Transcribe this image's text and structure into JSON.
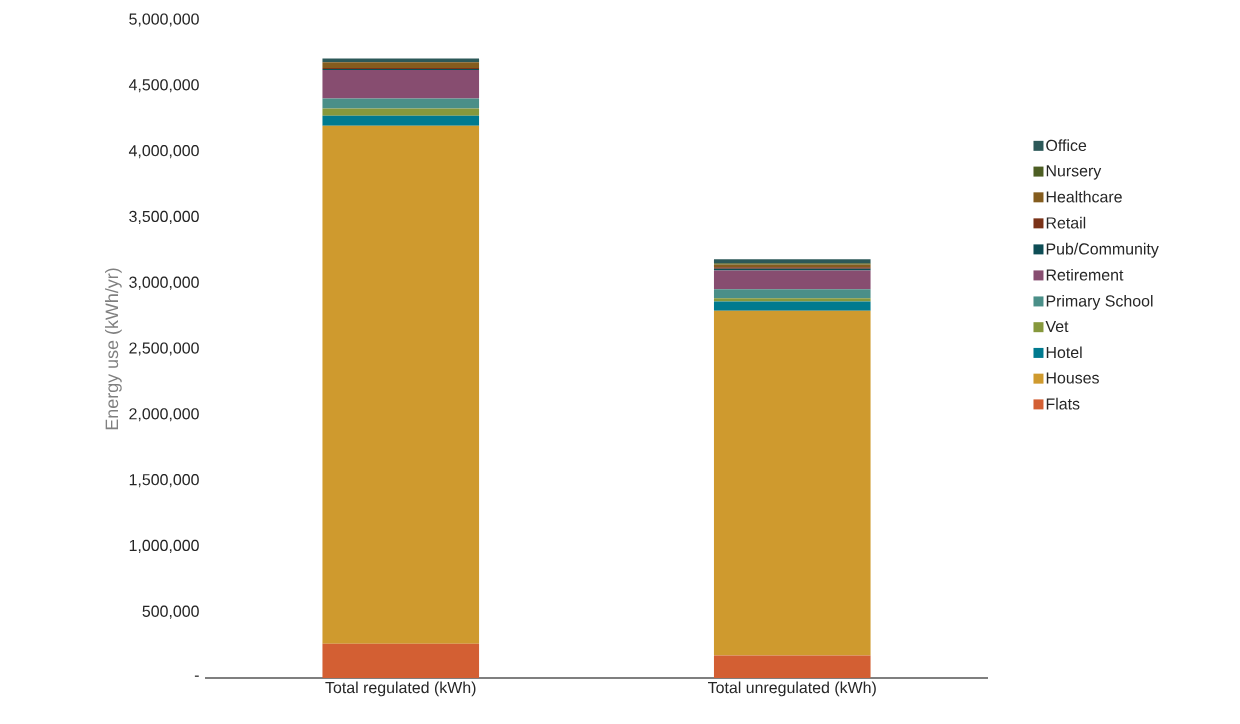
{
  "chart_data": {
    "type": "bar",
    "stacked": true,
    "ylabel": "Energy use (kWh/yr)",
    "categories": [
      "Total regulated (kWh)",
      "Total unregulated (kWh)"
    ],
    "series": [
      {
        "name": "Flats",
        "color": "#d35f33",
        "values": [
          260000,
          170000
        ]
      },
      {
        "name": "Houses",
        "color": "#cf9a2e",
        "values": [
          3936000,
          2620000
        ]
      },
      {
        "name": "Hotel",
        "color": "#007a8f",
        "values": [
          76000,
          71000
        ]
      },
      {
        "name": "Vet",
        "color": "#86983c",
        "values": [
          56000,
          25000
        ]
      },
      {
        "name": "Primary School",
        "color": "#4a8f88",
        "values": [
          76000,
          68000
        ]
      },
      {
        "name": "Retirement",
        "color": "#874d70",
        "values": [
          215000,
          142000
        ]
      },
      {
        "name": "Pub/Community",
        "color": "#0d4d55",
        "values": [
          8000,
          13000
        ]
      },
      {
        "name": "Retail",
        "color": "#7a3218",
        "values": [
          8000,
          13000
        ]
      },
      {
        "name": "Healthcare",
        "color": "#845c1e",
        "values": [
          43000,
          20000
        ]
      },
      {
        "name": "Nursery",
        "color": "#4d5e23",
        "values": [
          null,
          10000
        ]
      },
      {
        "name": "Office",
        "color": "#2c5858",
        "values": [
          30000,
          30000
        ]
      }
    ],
    "ylim": [
      0,
      5000000
    ],
    "yticks": [
      {
        "value": 0,
        "label": "-"
      },
      {
        "value": 500000,
        "label": "500,000"
      },
      {
        "value": 1000000,
        "label": "1,000,000"
      },
      {
        "value": 1500000,
        "label": "1,500,000"
      },
      {
        "value": 2000000,
        "label": "2,000,000"
      },
      {
        "value": 2500000,
        "label": "2,500,000"
      },
      {
        "value": 3000000,
        "label": "3,000,000"
      },
      {
        "value": 3500000,
        "label": "3,500,000"
      },
      {
        "value": 4000000,
        "label": "4,000,000"
      },
      {
        "value": 4500000,
        "label": "4,500,000"
      },
      {
        "value": 5000000,
        "label": "5,000,000"
      }
    ],
    "grid": false,
    "legend": "right"
  }
}
